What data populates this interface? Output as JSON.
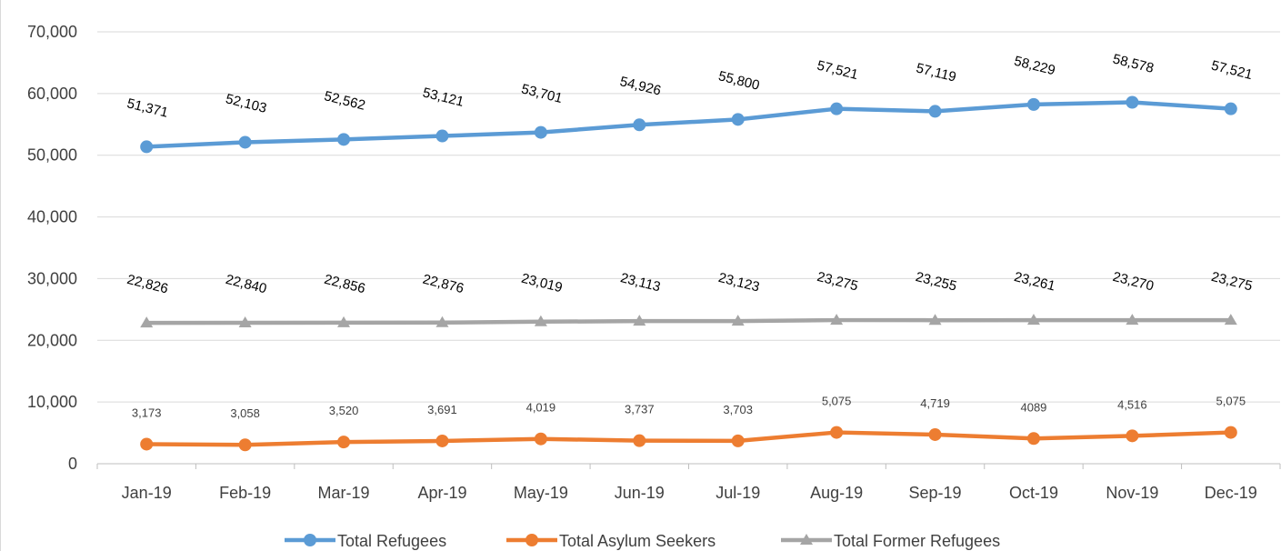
{
  "chart_data": {
    "type": "line",
    "categories": [
      "Jan-19",
      "Feb-19",
      "Mar-19",
      "Apr-19",
      "May-19",
      "Jun-19",
      "Jul-19",
      "Aug-19",
      "Sep-19",
      "Oct-19",
      "Nov-19",
      "Dec-19"
    ],
    "ylim": [
      0,
      70000
    ],
    "yticks": [
      0,
      10000,
      20000,
      30000,
      40000,
      50000,
      60000,
      70000
    ],
    "ytick_labels": [
      "0",
      "10,000",
      "20,000",
      "30,000",
      "40,000",
      "50,000",
      "60,000",
      "70,000"
    ],
    "grid": true,
    "legend_position": "bottom",
    "series": [
      {
        "name": "Total Refugees",
        "color": "#5b9bd5",
        "marker": "circle",
        "values": [
          51371,
          52103,
          52562,
          53121,
          53701,
          54926,
          55800,
          57521,
          57119,
          58229,
          58578,
          57521
        ],
        "labels": [
          "51,371",
          "52,103",
          "52,562",
          "53,121",
          "53,701",
          "54,926",
          "55,800",
          "57,521",
          "57,119",
          "58,229",
          "58,578",
          "57,521"
        ]
      },
      {
        "name": "Total Asylum Seekers",
        "color": "#ed7d31",
        "marker": "circle",
        "values": [
          3173,
          3058,
          3520,
          3691,
          4019,
          3737,
          3703,
          5075,
          4719,
          4089,
          4516,
          5075
        ],
        "labels": [
          "3,173",
          "3,058",
          "3,520",
          "3,691",
          "4,019",
          "3,737",
          "3,703",
          "5,075",
          "4,719",
          "4089",
          "4,516",
          "5,075"
        ]
      },
      {
        "name": "Total Former Refugees",
        "color": "#a5a5a5",
        "marker": "triangle",
        "values": [
          22826,
          22840,
          22856,
          22876,
          23019,
          23113,
          23123,
          23275,
          23255,
          23261,
          23270,
          23275
        ],
        "labels": [
          "22,826",
          "22,840",
          "22,856",
          "22,876",
          "23,019",
          "23,113",
          "23,123",
          "23,275",
          "23,255",
          "23,261",
          "23,270",
          "23,275"
        ]
      }
    ]
  }
}
